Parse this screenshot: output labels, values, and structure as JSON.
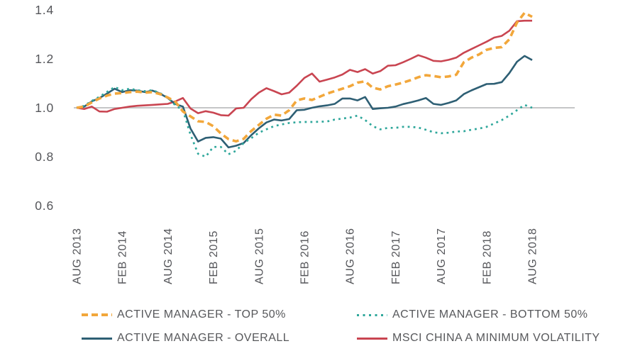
{
  "chart_data": {
    "type": "line",
    "title": "",
    "xlabel": "",
    "ylabel": "",
    "x_frequency": "monthly",
    "x_range": [
      "AUG 2013",
      "AUG 2018"
    ],
    "x_tick_labels": [
      "AUG 2013",
      "FEB 2014",
      "AUG 2014",
      "FEB 2015",
      "AUG 2015",
      "FEB 2016",
      "AUG 2016",
      "FEB 2017",
      "AUG 2017",
      "FEB 2018",
      "AUG 2018"
    ],
    "y_ticks": [
      0.6,
      0.8,
      1.0,
      1.2,
      1.4
    ],
    "y_tick_labels": [
      "0.6",
      "0.8",
      "1.0",
      "1.2",
      "1.4"
    ],
    "ylim": [
      0.55,
      1.42
    ],
    "baseline": 1.0,
    "grid": "single horizontal baseline at 1.0",
    "legend_position": "bottom",
    "series": [
      {
        "name": "ACTIVE MANAGER - TOP 50%",
        "color": "#F2A73B",
        "style": "dashed",
        "values": [
          1.0,
          1.005,
          1.022,
          1.038,
          1.05,
          1.058,
          1.06,
          1.064,
          1.066,
          1.062,
          1.064,
          1.056,
          1.042,
          1.025,
          0.985,
          0.965,
          0.945,
          0.942,
          0.925,
          0.895,
          0.872,
          0.863,
          0.873,
          0.905,
          0.93,
          0.955,
          0.972,
          0.968,
          0.99,
          1.03,
          1.038,
          1.032,
          1.045,
          1.058,
          1.068,
          1.078,
          1.088,
          1.103,
          1.108,
          1.082,
          1.075,
          1.088,
          1.095,
          1.103,
          1.113,
          1.125,
          1.133,
          1.13,
          1.125,
          1.128,
          1.135,
          1.186,
          1.205,
          1.218,
          1.237,
          1.245,
          1.248,
          1.28,
          1.348,
          1.388,
          1.372
        ]
      },
      {
        "name": "ACTIVE MANAGER - BOTTOM 50%",
        "color": "#2FA79B",
        "style": "dotted",
        "values": [
          1.0,
          1.008,
          1.028,
          1.045,
          1.065,
          1.085,
          1.072,
          1.078,
          1.072,
          1.068,
          1.072,
          1.06,
          1.042,
          1.01,
          0.99,
          0.89,
          0.812,
          0.8,
          0.84,
          0.84,
          0.81,
          0.824,
          0.856,
          0.876,
          0.898,
          0.912,
          0.925,
          0.932,
          0.938,
          0.941,
          0.942,
          0.942,
          0.943,
          0.944,
          0.952,
          0.956,
          0.96,
          0.968,
          0.95,
          0.925,
          0.912,
          0.918,
          0.918,
          0.922,
          0.922,
          0.919,
          0.91,
          0.9,
          0.896,
          0.898,
          0.903,
          0.904,
          0.91,
          0.915,
          0.922,
          0.936,
          0.95,
          0.968,
          0.99,
          1.012,
          1.0
        ]
      },
      {
        "name": "ACTIVE MANAGER - OVERALL",
        "color": "#2E5F74",
        "style": "solid",
        "values": [
          1.0,
          1.005,
          1.026,
          1.04,
          1.058,
          1.078,
          1.064,
          1.072,
          1.07,
          1.064,
          1.07,
          1.058,
          1.04,
          1.015,
          1.005,
          0.915,
          0.862,
          0.877,
          0.88,
          0.874,
          0.838,
          0.845,
          0.856,
          0.888,
          0.916,
          0.94,
          0.952,
          0.948,
          0.954,
          0.99,
          0.992,
          1.0,
          1.006,
          1.01,
          1.016,
          1.038,
          1.038,
          1.03,
          1.044,
          0.995,
          0.998,
          1.0,
          1.005,
          1.015,
          1.022,
          1.03,
          1.04,
          1.016,
          1.012,
          1.02,
          1.03,
          1.056,
          1.071,
          1.084,
          1.097,
          1.098,
          1.105,
          1.142,
          1.188,
          1.212,
          1.195
        ]
      },
      {
        "name": "MSCI CHINA A MINIMUM VOLATILITY",
        "color": "#C94551",
        "style": "solid",
        "values": [
          1.0,
          0.995,
          1.005,
          0.985,
          0.984,
          0.995,
          1.0,
          1.005,
          1.008,
          1.01,
          1.012,
          1.014,
          1.016,
          1.026,
          1.04,
          0.997,
          0.978,
          0.986,
          0.98,
          0.97,
          0.968,
          0.997,
          1.0,
          1.035,
          1.062,
          1.08,
          1.068,
          1.055,
          1.062,
          1.09,
          1.122,
          1.14,
          1.107,
          1.115,
          1.124,
          1.136,
          1.155,
          1.146,
          1.158,
          1.14,
          1.15,
          1.172,
          1.174,
          1.186,
          1.2,
          1.215,
          1.205,
          1.192,
          1.19,
          1.196,
          1.205,
          1.225,
          1.24,
          1.255,
          1.27,
          1.287,
          1.294,
          1.315,
          1.354,
          1.356,
          1.356
        ]
      }
    ]
  },
  "colors": {
    "text": "#55565A",
    "gridline": "#C5C6C7",
    "background": "#FFFFFF"
  }
}
